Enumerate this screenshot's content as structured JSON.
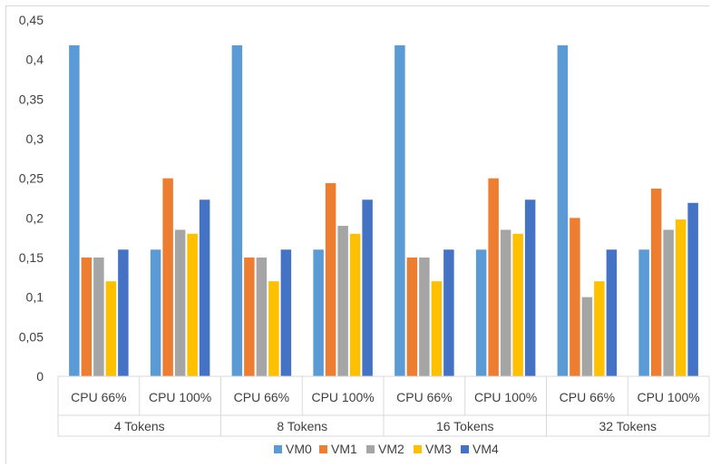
{
  "chart_data": {
    "type": "bar",
    "title": "",
    "xlabel": "",
    "ylabel": "",
    "ylim": [
      0,
      0.45
    ],
    "yticks": [
      "0",
      "0,05",
      "0,1",
      "0,15",
      "0,2",
      "0,25",
      "0,3",
      "0,35",
      "0,4",
      "0,45"
    ],
    "ytick_values": [
      0,
      0.05,
      0.1,
      0.15,
      0.2,
      0.25,
      0.3,
      0.35,
      0.4,
      0.45
    ],
    "grid": false,
    "legend_position": "bottom",
    "groups": [
      "4 Tokens",
      "8 Tokens",
      "16 Tokens",
      "32 Tokens"
    ],
    "subcategories": [
      "CPU 66%",
      "CPU 100%"
    ],
    "categories": [
      "4 Tokens - CPU 66%",
      "4 Tokens - CPU 100%",
      "8 Tokens - CPU 66%",
      "8 Tokens - CPU 100%",
      "16 Tokens - CPU 66%",
      "16 Tokens - CPU 100%",
      "32 Tokens - CPU 66%",
      "32 Tokens - CPU 100%"
    ],
    "series": [
      {
        "name": "VM0",
        "color": "#5B9BD5",
        "values": [
          0.418,
          0.16,
          0.418,
          0.16,
          0.418,
          0.16,
          0.418,
          0.16
        ]
      },
      {
        "name": "VM1",
        "color": "#ED7D31",
        "values": [
          0.15,
          0.25,
          0.15,
          0.244,
          0.15,
          0.25,
          0.2,
          0.237
        ]
      },
      {
        "name": "VM2",
        "color": "#A5A5A5",
        "values": [
          0.15,
          0.185,
          0.15,
          0.19,
          0.15,
          0.185,
          0.1,
          0.185
        ]
      },
      {
        "name": "VM3",
        "color": "#FFC000",
        "values": [
          0.12,
          0.18,
          0.12,
          0.18,
          0.12,
          0.18,
          0.12,
          0.198
        ]
      },
      {
        "name": "VM4",
        "color": "#4472C4",
        "values": [
          0.16,
          0.223,
          0.16,
          0.223,
          0.16,
          0.223,
          0.16,
          0.219
        ]
      }
    ]
  }
}
